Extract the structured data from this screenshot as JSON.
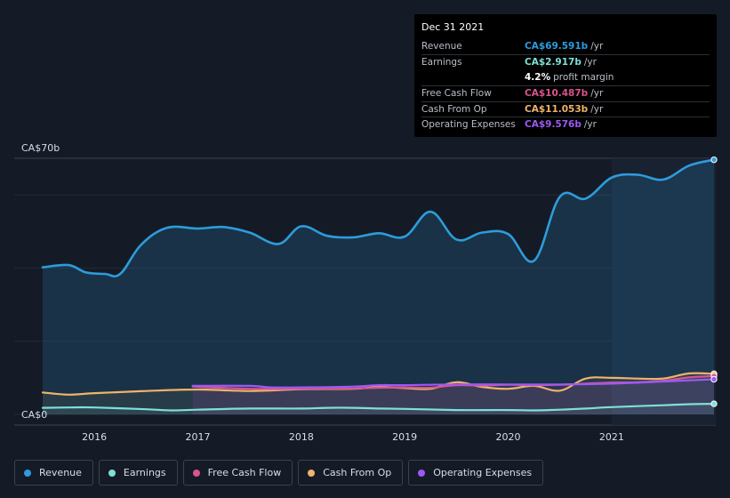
{
  "tooltip": {
    "date": "Dec 31 2021",
    "rows": [
      {
        "label": "Revenue",
        "value": "CA$69.591b",
        "unit": "/yr",
        "color": "#2d9cdb"
      },
      {
        "label": "Earnings",
        "value": "CA$2.917b",
        "unit": "/yr",
        "color": "#7ee0d6"
      },
      {
        "label": "",
        "value": "4.2%",
        "unit": "profit margin",
        "color": "#ffffff"
      },
      {
        "label": "Free Cash Flow",
        "value": "CA$10.487b",
        "unit": "/yr",
        "color": "#d9548e"
      },
      {
        "label": "Cash From Op",
        "value": "CA$11.053b",
        "unit": "/yr",
        "color": "#f0b36a"
      },
      {
        "label": "Operating Expenses",
        "value": "CA$9.576b",
        "unit": "/yr",
        "color": "#9b59f6"
      }
    ]
  },
  "legend": [
    {
      "label": "Revenue",
      "color": "#2d9cdb"
    },
    {
      "label": "Earnings",
      "color": "#7ee0d6"
    },
    {
      "label": "Free Cash Flow",
      "color": "#d9548e"
    },
    {
      "label": "Cash From Op",
      "color": "#f0b36a"
    },
    {
      "label": "Operating Expenses",
      "color": "#9b59f6"
    }
  ],
  "chart_data": {
    "type": "line",
    "ylim": [
      0,
      70
    ],
    "y_ticks": [
      {
        "value": 70,
        "label": "CA$70b"
      },
      {
        "value": 0,
        "label": "CA$0"
      }
    ],
    "x_range": [
      2015.5,
      2021.99
    ],
    "x_ticks": [
      {
        "value": 2016,
        "label": "2016"
      },
      {
        "value": 2017,
        "label": "2017"
      },
      {
        "value": 2018,
        "label": "2018"
      },
      {
        "value": 2019,
        "label": "2019"
      },
      {
        "value": 2020,
        "label": "2020"
      },
      {
        "value": 2021,
        "label": "2021"
      }
    ],
    "highlight_from": 2021,
    "series": [
      {
        "name": "Revenue",
        "color": "#2d9cdb",
        "fill": true,
        "points": [
          [
            2015.5,
            40.2
          ],
          [
            2015.75,
            40.8
          ],
          [
            2015.92,
            38.8
          ],
          [
            2016.1,
            38.4
          ],
          [
            2016.25,
            38.4
          ],
          [
            2016.45,
            46.3
          ],
          [
            2016.7,
            51.0
          ],
          [
            2017.0,
            50.8
          ],
          [
            2017.25,
            51.2
          ],
          [
            2017.5,
            49.7
          ],
          [
            2017.78,
            46.6
          ],
          [
            2018.0,
            51.4
          ],
          [
            2018.25,
            48.8
          ],
          [
            2018.5,
            48.4
          ],
          [
            2018.75,
            49.5
          ],
          [
            2019.0,
            48.6
          ],
          [
            2019.25,
            55.4
          ],
          [
            2019.5,
            47.8
          ],
          [
            2019.75,
            49.7
          ],
          [
            2020.0,
            49.3
          ],
          [
            2020.25,
            42.0
          ],
          [
            2020.5,
            59.5
          ],
          [
            2020.75,
            59.0
          ],
          [
            2021.0,
            64.7
          ],
          [
            2021.25,
            65.5
          ],
          [
            2021.5,
            64.2
          ],
          [
            2021.75,
            68.0
          ],
          [
            2021.99,
            69.6
          ]
        ]
      },
      {
        "name": "Cash From Op",
        "color": "#f0b36a",
        "fill": false,
        "points": [
          [
            2015.5,
            6.0
          ],
          [
            2015.75,
            5.4
          ],
          [
            2016.0,
            5.8
          ],
          [
            2016.5,
            6.4
          ],
          [
            2017.0,
            6.8
          ],
          [
            2017.5,
            6.4
          ],
          [
            2018.0,
            6.9
          ],
          [
            2018.5,
            7.0
          ],
          [
            2018.75,
            7.5
          ],
          [
            2019.0,
            7.2
          ],
          [
            2019.25,
            7.0
          ],
          [
            2019.5,
            8.8
          ],
          [
            2019.75,
            7.5
          ],
          [
            2020.0,
            7.0
          ],
          [
            2020.25,
            7.8
          ],
          [
            2020.5,
            6.5
          ],
          [
            2020.75,
            9.8
          ],
          [
            2021.0,
            10.0
          ],
          [
            2021.25,
            9.8
          ],
          [
            2021.5,
            9.8
          ],
          [
            2021.75,
            11.2
          ],
          [
            2021.99,
            11.1
          ]
        ]
      },
      {
        "name": "Free Cash Flow",
        "color": "#d9548e",
        "fill": false,
        "points": [
          [
            2016.95,
            7.6
          ],
          [
            2017.5,
            7.0
          ],
          [
            2018.0,
            7.0
          ],
          [
            2018.5,
            7.1
          ],
          [
            2018.75,
            7.3
          ],
          [
            2019.0,
            7.4
          ],
          [
            2019.25,
            7.3
          ],
          [
            2019.5,
            8.0
          ],
          [
            2019.75,
            7.9
          ],
          [
            2020.0,
            8.1
          ],
          [
            2020.25,
            8.0
          ],
          [
            2020.5,
            8.1
          ],
          [
            2020.75,
            8.4
          ],
          [
            2021.0,
            8.7
          ],
          [
            2021.25,
            8.8
          ],
          [
            2021.5,
            9.2
          ],
          [
            2021.75,
            10.1
          ],
          [
            2021.99,
            10.5
          ]
        ]
      },
      {
        "name": "Operating Expenses",
        "color": "#9b59f6",
        "fill": false,
        "points": [
          [
            2016.95,
            7.8
          ],
          [
            2017.5,
            7.8
          ],
          [
            2017.7,
            7.4
          ],
          [
            2018.0,
            7.4
          ],
          [
            2018.5,
            7.6
          ],
          [
            2018.75,
            8.0
          ],
          [
            2019.0,
            8.0
          ],
          [
            2019.5,
            8.2
          ],
          [
            2020.0,
            8.2
          ],
          [
            2020.5,
            8.2
          ],
          [
            2021.0,
            8.4
          ],
          [
            2021.5,
            9.0
          ],
          [
            2021.99,
            9.6
          ]
        ]
      },
      {
        "name": "Earnings",
        "color": "#7ee0d6",
        "fill": false,
        "points": [
          [
            2015.5,
            1.8
          ],
          [
            2015.75,
            1.9
          ],
          [
            2016.0,
            1.9
          ],
          [
            2016.5,
            1.4
          ],
          [
            2016.75,
            1.1
          ],
          [
            2017.0,
            1.3
          ],
          [
            2017.5,
            1.6
          ],
          [
            2018.0,
            1.6
          ],
          [
            2018.25,
            1.8
          ],
          [
            2018.5,
            1.8
          ],
          [
            2018.75,
            1.6
          ],
          [
            2019.0,
            1.5
          ],
          [
            2019.5,
            1.2
          ],
          [
            2020.0,
            1.2
          ],
          [
            2020.25,
            1.1
          ],
          [
            2020.5,
            1.3
          ],
          [
            2020.75,
            1.6
          ],
          [
            2021.0,
            2.0
          ],
          [
            2021.5,
            2.5
          ],
          [
            2021.75,
            2.8
          ],
          [
            2021.99,
            2.9
          ]
        ]
      }
    ]
  }
}
